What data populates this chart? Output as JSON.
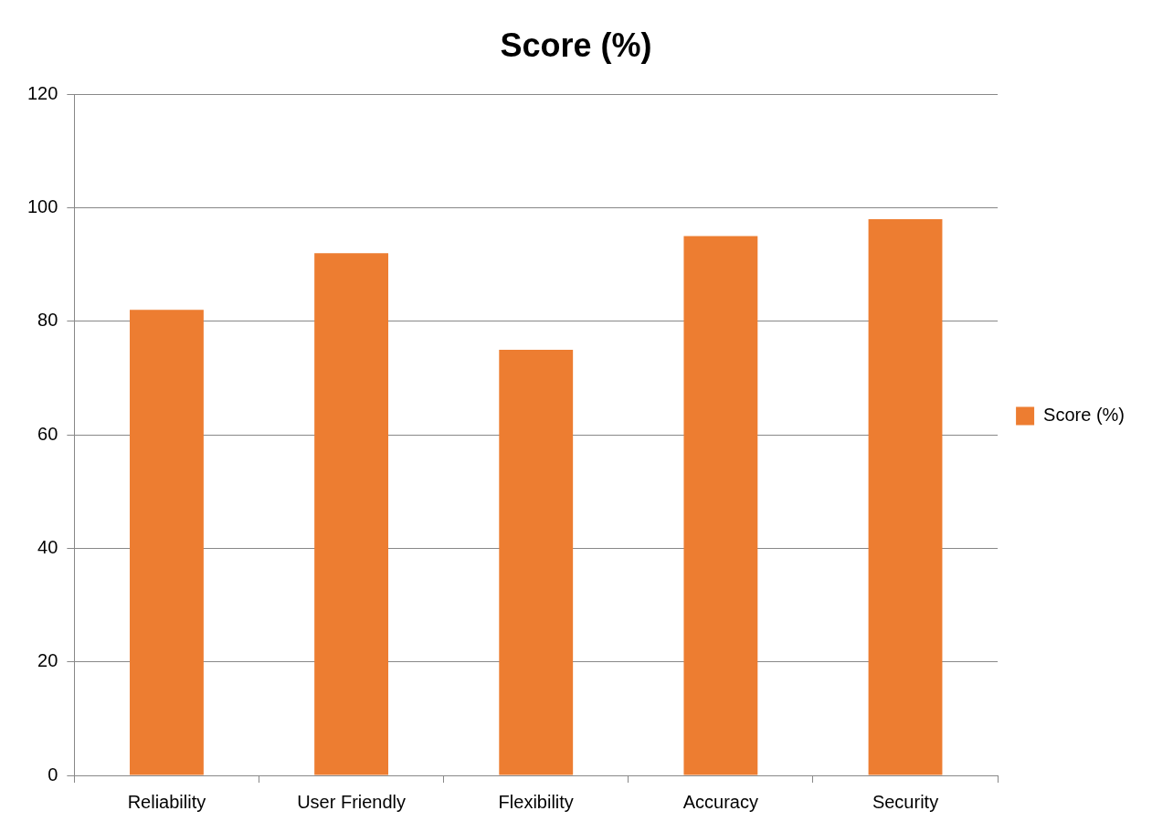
{
  "chart_data": {
    "type": "bar",
    "title": "Score (%)",
    "categories": [
      "Reliability",
      "User Friendly",
      "Flexibility",
      "Accuracy",
      "Security"
    ],
    "series": [
      {
        "name": "Score (%)",
        "color": "#ed7d31",
        "values": [
          82,
          92,
          75,
          95,
          98
        ]
      }
    ],
    "ylim": [
      0,
      120
    ],
    "yticks": [
      0,
      20,
      40,
      60,
      80,
      100,
      120
    ],
    "grid": "y",
    "legend": "right"
  }
}
